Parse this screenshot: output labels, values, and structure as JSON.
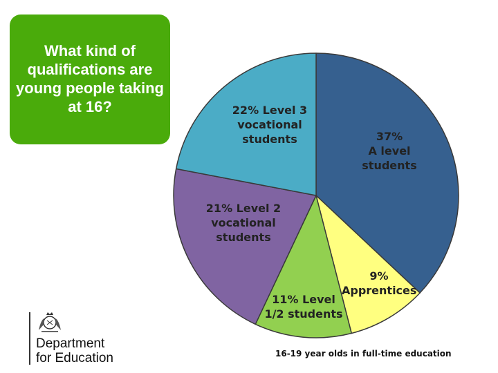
{
  "question": "What kind of qualifications are young people taking at 16?",
  "chart_data": {
    "type": "pie",
    "categories": [
      "A level students",
      "Apprentices",
      "Level 1/2 students",
      "Level 2 vocational students",
      "Level 3 vocational students"
    ],
    "values": [
      37,
      9,
      11,
      21,
      22
    ],
    "labels": [
      "37%\nA level\nstudents",
      "9%\nApprentices",
      "11% Level\n1/2 students",
      "21% Level 2\nvocational\nstudents",
      "22% Level 3\nvocational\nstudents"
    ],
    "colors": [
      "#36608f",
      "#ffff80",
      "#92d050",
      "#8064a2",
      "#4bacc6"
    ]
  },
  "footnote": "16-19 year olds in full-time education",
  "logo": {
    "line1": "Department",
    "line2": "for Education"
  },
  "colors": {
    "question_box": "#4aab0b",
    "slice_border": "#3a3a3a"
  }
}
